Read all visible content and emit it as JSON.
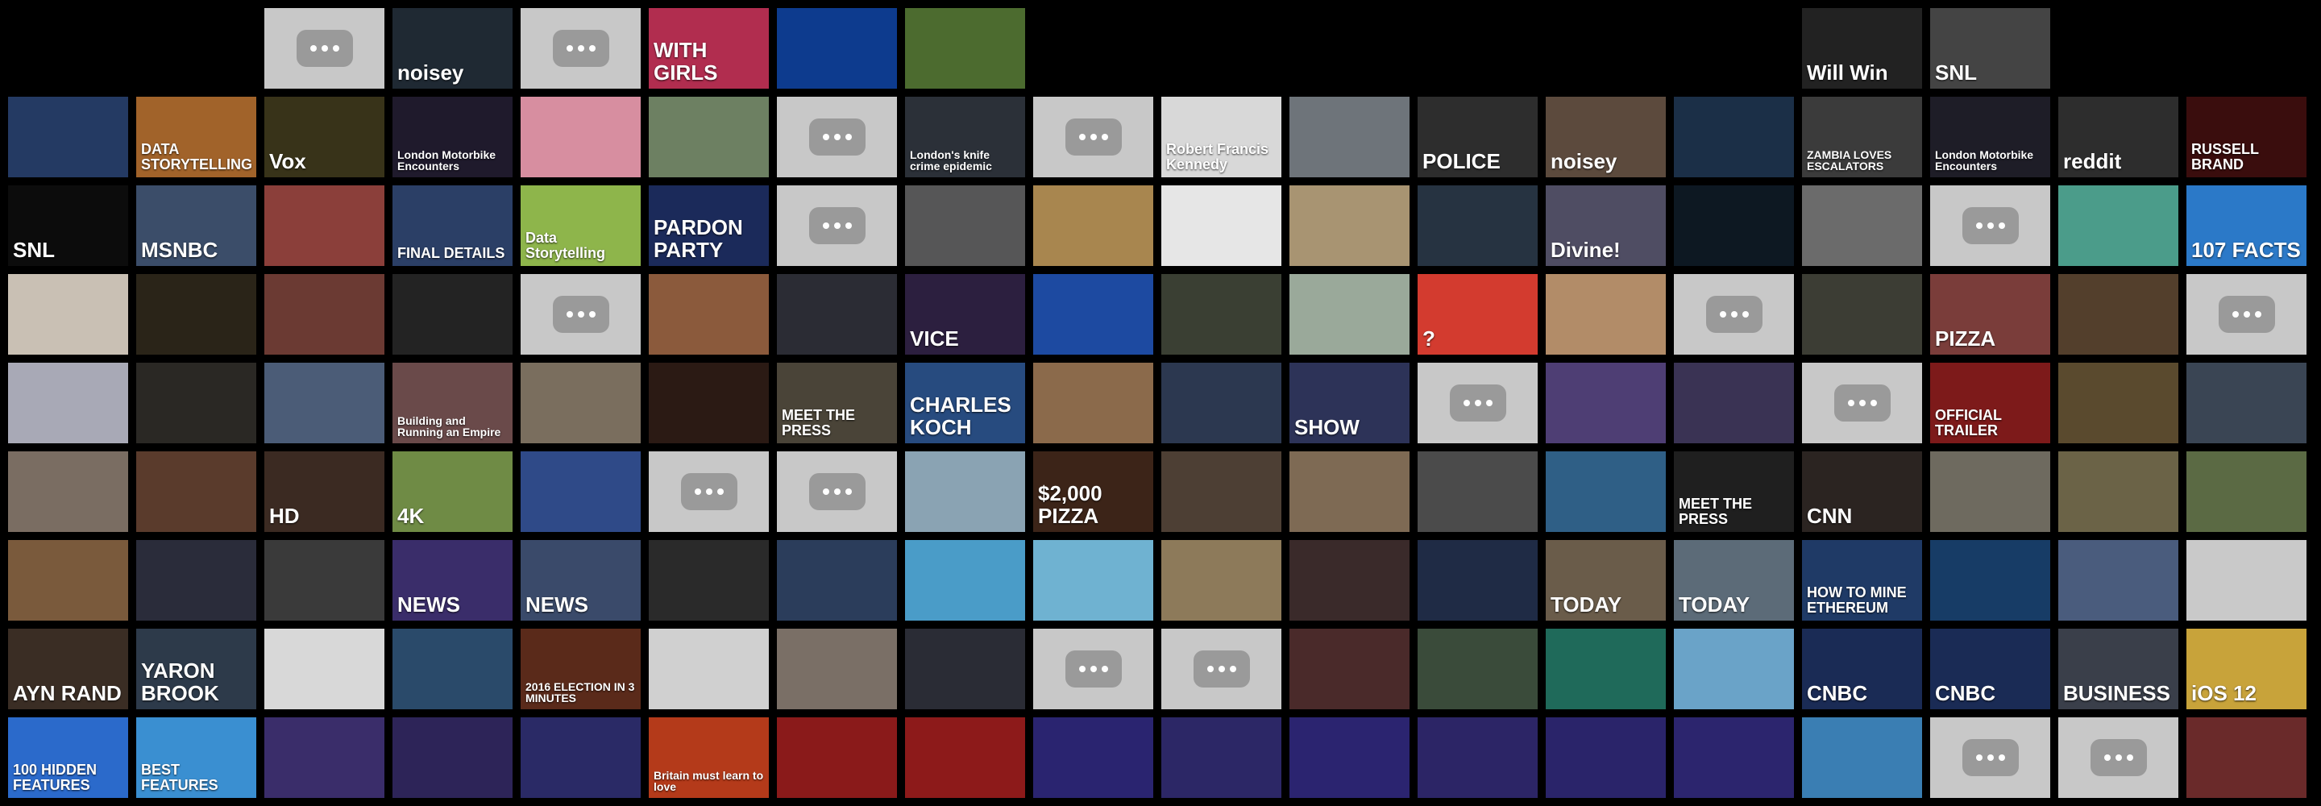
{
  "thumbnails": [
    {
      "row": 0,
      "col": 2,
      "text": "",
      "bg": "#c8c8c8",
      "placeholder": true
    },
    {
      "row": 0,
      "col": 3,
      "text": "noisey",
      "bg": "#1f2933"
    },
    {
      "row": 0,
      "col": 4,
      "text": "",
      "bg": "#c8c8c8",
      "placeholder": true
    },
    {
      "row": 0,
      "col": 5,
      "text": "WITH GIRLS",
      "bg": "#b12d4f"
    },
    {
      "row": 0,
      "col": 6,
      "text": "",
      "bg": "#0d3b8e"
    },
    {
      "row": 0,
      "col": 7,
      "text": "",
      "bg": "#4c6b2f"
    },
    {
      "row": 0,
      "col": 14,
      "text": "Will Win",
      "bg": "#222"
    },
    {
      "row": 0,
      "col": 15,
      "text": "SNL",
      "bg": "#444"
    },
    {
      "row": 1,
      "col": 0,
      "text": "",
      "bg": "#243a63"
    },
    {
      "row": 1,
      "col": 1,
      "text": "DATA STORYTELLING",
      "bg": "#a1632a"
    },
    {
      "row": 1,
      "col": 2,
      "text": "Vox",
      "bg": "#383319"
    },
    {
      "row": 1,
      "col": 3,
      "text": "London Motorbike Encounters",
      "bg": "#1f1a2c"
    },
    {
      "row": 1,
      "col": 4,
      "text": "",
      "bg": "#d78ea0"
    },
    {
      "row": 1,
      "col": 5,
      "text": "",
      "bg": "#6d8062"
    },
    {
      "row": 1,
      "col": 6,
      "text": "",
      "bg": "#c8c8c8",
      "placeholder": true
    },
    {
      "row": 1,
      "col": 7,
      "text": "London's knife crime epidemic",
      "bg": "#2b3038"
    },
    {
      "row": 1,
      "col": 8,
      "text": "",
      "bg": "#c8c8c8",
      "placeholder": true
    },
    {
      "row": 1,
      "col": 9,
      "text": "Robert Francis Kennedy",
      "bg": "#d8d8d8"
    },
    {
      "row": 1,
      "col": 10,
      "text": "",
      "bg": "#6e747a"
    },
    {
      "row": 1,
      "col": 11,
      "text": "POLICE",
      "bg": "#2d2d2d"
    },
    {
      "row": 1,
      "col": 12,
      "text": "noisey",
      "bg": "#5c4a3d"
    },
    {
      "row": 1,
      "col": 13,
      "text": "",
      "bg": "#1b2f47"
    },
    {
      "row": 1,
      "col": 14,
      "text": "ZAMBIA LOVES ESCALATORS",
      "bg": "#3b3b3b"
    },
    {
      "row": 1,
      "col": 15,
      "text": "London Motorbike Encounters",
      "bg": "#1e1d27"
    },
    {
      "row": 1,
      "col": 16,
      "text": "reddit",
      "bg": "#2d2d2d"
    },
    {
      "row": 1,
      "col": 17,
      "text": "RUSSELL BRAND",
      "bg": "#3a0d0d"
    },
    {
      "row": 2,
      "col": 0,
      "text": "SNL",
      "bg": "#0c0c0c"
    },
    {
      "row": 2,
      "col": 1,
      "text": "MSNBC",
      "bg": "#3b4d69"
    },
    {
      "row": 2,
      "col": 2,
      "text": "",
      "bg": "#8b3f3a"
    },
    {
      "row": 2,
      "col": 3,
      "text": "FINAL DETAILS",
      "bg": "#2b3f66"
    },
    {
      "row": 2,
      "col": 4,
      "text": "Data Storytelling",
      "bg": "#8eb54b"
    },
    {
      "row": 2,
      "col": 5,
      "text": "PARDON PARTY",
      "bg": "#1b2a5a"
    },
    {
      "row": 2,
      "col": 6,
      "text": "",
      "bg": "#c8c8c8",
      "placeholder": true
    },
    {
      "row": 2,
      "col": 7,
      "text": "",
      "bg": "#565657"
    },
    {
      "row": 2,
      "col": 8,
      "text": "",
      "bg": "#a8864f"
    },
    {
      "row": 2,
      "col": 9,
      "text": "",
      "bg": "#e6e6e6"
    },
    {
      "row": 2,
      "col": 10,
      "text": "",
      "bg": "#a89472"
    },
    {
      "row": 2,
      "col": 11,
      "text": "",
      "bg": "#263341"
    },
    {
      "row": 2,
      "col": 12,
      "text": "Divine!",
      "bg": "#4f4d63"
    },
    {
      "row": 2,
      "col": 13,
      "text": "",
      "bg": "#0d1822"
    },
    {
      "row": 2,
      "col": 14,
      "text": "",
      "bg": "#6b6b6b"
    },
    {
      "row": 2,
      "col": 15,
      "text": "",
      "bg": "#c8c8c8",
      "placeholder": true
    },
    {
      "row": 2,
      "col": 16,
      "text": "",
      "bg": "#4b9c8a"
    },
    {
      "row": 2,
      "col": 17,
      "text": "107 FACTS",
      "bg": "#2b79c8"
    },
    {
      "row": 3,
      "col": 0,
      "text": "",
      "bg": "#c9c0b4"
    },
    {
      "row": 3,
      "col": 1,
      "text": "",
      "bg": "#2a2418"
    },
    {
      "row": 3,
      "col": 2,
      "text": "",
      "bg": "#6b3a33"
    },
    {
      "row": 3,
      "col": 3,
      "text": "",
      "bg": "#232323"
    },
    {
      "row": 3,
      "col": 4,
      "text": "",
      "bg": "#c8c8c8",
      "placeholder": true
    },
    {
      "row": 3,
      "col": 5,
      "text": "",
      "bg": "#8b5a3c"
    },
    {
      "row": 3,
      "col": 6,
      "text": "",
      "bg": "#2b2c34"
    },
    {
      "row": 3,
      "col": 7,
      "text": "VICE",
      "bg": "#2c1f3f"
    },
    {
      "row": 3,
      "col": 8,
      "text": "",
      "bg": "#1d4aa1"
    },
    {
      "row": 3,
      "col": 9,
      "text": "",
      "bg": "#3a3f33"
    },
    {
      "row": 3,
      "col": 10,
      "text": "",
      "bg": "#9aa99a"
    },
    {
      "row": 3,
      "col": 11,
      "text": "?",
      "bg": "#d33b2f"
    },
    {
      "row": 3,
      "col": 12,
      "text": "",
      "bg": "#b28c68"
    },
    {
      "row": 3,
      "col": 13,
      "text": "",
      "bg": "#c8c8c8",
      "placeholder": true
    },
    {
      "row": 3,
      "col": 14,
      "text": "",
      "bg": "#3c3d34"
    },
    {
      "row": 3,
      "col": 15,
      "text": "PIZZA",
      "bg": "#7a3d3a"
    },
    {
      "row": 3,
      "col": 16,
      "text": "",
      "bg": "#533f2c"
    },
    {
      "row": 3,
      "col": 17,
      "text": "",
      "bg": "#c8c8c8",
      "placeholder": true
    },
    {
      "row": 4,
      "col": 0,
      "text": "",
      "bg": "#a8a9b6"
    },
    {
      "row": 4,
      "col": 1,
      "text": "",
      "bg": "#2a2824"
    },
    {
      "row": 4,
      "col": 2,
      "text": "",
      "bg": "#4b5c77"
    },
    {
      "row": 4,
      "col": 3,
      "text": "Building and Running an Empire",
      "bg": "#6a4a4a"
    },
    {
      "row": 4,
      "col": 4,
      "text": "",
      "bg": "#7a6e5e"
    },
    {
      "row": 4,
      "col": 5,
      "text": "",
      "bg": "#2b1a14"
    },
    {
      "row": 4,
      "col": 6,
      "text": "MEET THE PRESS",
      "bg": "#4a4438"
    },
    {
      "row": 4,
      "col": 7,
      "text": "CHARLES KOCH",
      "bg": "#274b7f"
    },
    {
      "row": 4,
      "col": 8,
      "text": "",
      "bg": "#8b6a4b"
    },
    {
      "row": 4,
      "col": 9,
      "text": "",
      "bg": "#2c3850"
    },
    {
      "row": 4,
      "col": 10,
      "text": "SHOW",
      "bg": "#2d3358"
    },
    {
      "row": 4,
      "col": 11,
      "text": "",
      "bg": "#c8c8c8",
      "placeholder": true
    },
    {
      "row": 4,
      "col": 12,
      "text": "",
      "bg": "#4e3e74"
    },
    {
      "row": 4,
      "col": 13,
      "text": "",
      "bg": "#3a3354"
    },
    {
      "row": 4,
      "col": 14,
      "text": "",
      "bg": "#c8c8c8",
      "placeholder": true
    },
    {
      "row": 4,
      "col": 15,
      "text": "OFFICIAL TRAILER",
      "bg": "#7d1a1a"
    },
    {
      "row": 4,
      "col": 16,
      "text": "",
      "bg": "#5a4a2e"
    },
    {
      "row": 4,
      "col": 17,
      "text": "",
      "bg": "#3a4554"
    },
    {
      "row": 5,
      "col": 0,
      "text": "",
      "bg": "#7a6d62"
    },
    {
      "row": 5,
      "col": 1,
      "text": "",
      "bg": "#5a3b2c"
    },
    {
      "row": 5,
      "col": 2,
      "text": "HD",
      "bg": "#3b2a22"
    },
    {
      "row": 5,
      "col": 3,
      "text": "4K",
      "bg": "#6f8b45"
    },
    {
      "row": 5,
      "col": 4,
      "text": "",
      "bg": "#2f4a88"
    },
    {
      "row": 5,
      "col": 5,
      "text": "",
      "bg": "#c8c8c8",
      "placeholder": true
    },
    {
      "row": 5,
      "col": 6,
      "text": "",
      "bg": "#c8c8c8",
      "placeholder": true
    },
    {
      "row": 5,
      "col": 7,
      "text": "",
      "bg": "#8aa3b3"
    },
    {
      "row": 5,
      "col": 8,
      "text": "$2,000 PIZZA",
      "bg": "#3c2418"
    },
    {
      "row": 5,
      "col": 9,
      "text": "",
      "bg": "#4d3f34"
    },
    {
      "row": 5,
      "col": 10,
      "text": "",
      "bg": "#7e6a54"
    },
    {
      "row": 5,
      "col": 11,
      "text": "",
      "bg": "#4b4b4b"
    },
    {
      "row": 5,
      "col": 12,
      "text": "",
      "bg": "#2f5f86"
    },
    {
      "row": 5,
      "col": 13,
      "text": "MEET THE PRESS",
      "bg": "#1f1f1f"
    },
    {
      "row": 5,
      "col": 14,
      "text": "CNN",
      "bg": "#2b2421"
    },
    {
      "row": 5,
      "col": 15,
      "text": "",
      "bg": "#6e6a5f"
    },
    {
      "row": 5,
      "col": 16,
      "text": "",
      "bg": "#6b6347"
    },
    {
      "row": 5,
      "col": 17,
      "text": "",
      "bg": "#5b6a44"
    },
    {
      "row": 6,
      "col": 0,
      "text": "",
      "bg": "#7a5a3c"
    },
    {
      "row": 6,
      "col": 1,
      "text": "",
      "bg": "#2a2c3a"
    },
    {
      "row": 6,
      "col": 2,
      "text": "",
      "bg": "#3a3a3a"
    },
    {
      "row": 6,
      "col": 3,
      "text": "NEWS",
      "bg": "#3a2d6a"
    },
    {
      "row": 6,
      "col": 4,
      "text": "NEWS",
      "bg": "#3a4a6a"
    },
    {
      "row": 6,
      "col": 5,
      "text": "",
      "bg": "#2a2a2a"
    },
    {
      "row": 6,
      "col": 6,
      "text": "",
      "bg": "#2b3d5b"
    },
    {
      "row": 6,
      "col": 7,
      "text": "",
      "bg": "#4a9cc8"
    },
    {
      "row": 6,
      "col": 8,
      "text": "",
      "bg": "#6fb2d1"
    },
    {
      "row": 6,
      "col": 9,
      "text": "",
      "bg": "#8d7a5a"
    },
    {
      "row": 6,
      "col": 10,
      "text": "",
      "bg": "#3a2a2a"
    },
    {
      "row": 6,
      "col": 11,
      "text": "",
      "bg": "#1f2b45"
    },
    {
      "row": 6,
      "col": 12,
      "text": "TODAY",
      "bg": "#6a5c4a"
    },
    {
      "row": 6,
      "col": 13,
      "text": "TODAY",
      "bg": "#5c6b78"
    },
    {
      "row": 6,
      "col": 14,
      "text": "HOW TO MINE ETHEREUM",
      "bg": "#1f3a66"
    },
    {
      "row": 6,
      "col": 15,
      "text": "",
      "bg": "#173c66"
    },
    {
      "row": 6,
      "col": 16,
      "text": "",
      "bg": "#4a5c7d"
    },
    {
      "row": 6,
      "col": 17,
      "text": "",
      "bg": "#c9c9c9"
    },
    {
      "row": 7,
      "col": 0,
      "text": "AYN RAND",
      "bg": "#3a2d24"
    },
    {
      "row": 7,
      "col": 1,
      "text": "YARON BROOK",
      "bg": "#2d3a4a"
    },
    {
      "row": 7,
      "col": 2,
      "text": "",
      "bg": "#d8d8d8"
    },
    {
      "row": 7,
      "col": 3,
      "text": "",
      "bg": "#2a4a6a"
    },
    {
      "row": 7,
      "col": 4,
      "text": "2016 ELECTION IN 3 MINUTES",
      "bg": "#5a2a1a"
    },
    {
      "row": 7,
      "col": 5,
      "text": "",
      "bg": "#d0d0d0"
    },
    {
      "row": 7,
      "col": 6,
      "text": "",
      "bg": "#7a6f66"
    },
    {
      "row": 7,
      "col": 7,
      "text": "",
      "bg": "#2a2c35"
    },
    {
      "row": 7,
      "col": 8,
      "text": "",
      "bg": "#c8c8c8",
      "placeholder": true
    },
    {
      "row": 7,
      "col": 9,
      "text": "",
      "bg": "#c8c8c8",
      "placeholder": true
    },
    {
      "row": 7,
      "col": 10,
      "text": "",
      "bg": "#4a2a2a"
    },
    {
      "row": 7,
      "col": 11,
      "text": "",
      "bg": "#3a4b3a"
    },
    {
      "row": 7,
      "col": 12,
      "text": "",
      "bg": "#1f6a5a"
    },
    {
      "row": 7,
      "col": 13,
      "text": "",
      "bg": "#6aa3c8"
    },
    {
      "row": 7,
      "col": 14,
      "text": "CNBC",
      "bg": "#1a2b55"
    },
    {
      "row": 7,
      "col": 15,
      "text": "CNBC",
      "bg": "#1a2b55"
    },
    {
      "row": 7,
      "col": 16,
      "text": "BUSINESS",
      "bg": "#3a3f4a"
    },
    {
      "row": 7,
      "col": 17,
      "text": "iOS 12",
      "bg": "#c8a33a"
    },
    {
      "row": 8,
      "col": 0,
      "text": "100 HIDDEN FEATURES",
      "bg": "#2b6acb"
    },
    {
      "row": 8,
      "col": 1,
      "text": "BEST FEATURES",
      "bg": "#3a8fd1"
    },
    {
      "row": 8,
      "col": 2,
      "text": "",
      "bg": "#3a2d6a"
    },
    {
      "row": 8,
      "col": 3,
      "text": "",
      "bg": "#2d2458"
    },
    {
      "row": 8,
      "col": 4,
      "text": "",
      "bg": "#2a2a66"
    },
    {
      "row": 8,
      "col": 5,
      "text": "Britain must learn to love",
      "bg": "#b43a1a"
    },
    {
      "row": 8,
      "col": 6,
      "text": "",
      "bg": "#8a1a1a"
    },
    {
      "row": 8,
      "col": 7,
      "text": "",
      "bg": "#8d1a1a"
    },
    {
      "row": 8,
      "col": 8,
      "text": "",
      "bg": "#2a2470"
    },
    {
      "row": 8,
      "col": 9,
      "text": "",
      "bg": "#2c2766"
    },
    {
      "row": 8,
      "col": 10,
      "text": "",
      "bg": "#2b2470"
    },
    {
      "row": 8,
      "col": 11,
      "text": "",
      "bg": "#2c2566"
    },
    {
      "row": 8,
      "col": 12,
      "text": "",
      "bg": "#2a246a"
    },
    {
      "row": 8,
      "col": 13,
      "text": "",
      "bg": "#2c256e"
    },
    {
      "row": 8,
      "col": 14,
      "text": "",
      "bg": "#3a7eb3"
    },
    {
      "row": 8,
      "col": 15,
      "text": "",
      "bg": "#c8c8c8",
      "placeholder": true
    },
    {
      "row": 8,
      "col": 16,
      "text": "",
      "bg": "#c8c8c8",
      "placeholder": true
    },
    {
      "row": 8,
      "col": 17,
      "text": "",
      "bg": "#6a2a2a"
    }
  ]
}
